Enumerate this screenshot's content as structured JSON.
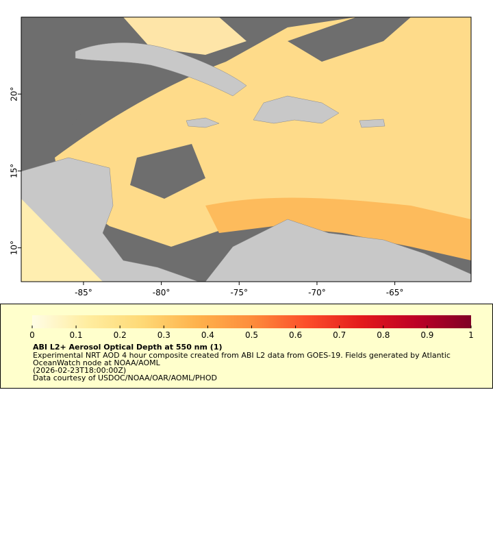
{
  "chart_data": {
    "type": "map",
    "xlim": [
      -89,
      -60.1
    ],
    "ylim": [
      7.8,
      25
    ],
    "xticks": [
      {
        "value": -85,
        "label": "-85°"
      },
      {
        "value": -80,
        "label": "-80°"
      },
      {
        "value": -75,
        "label": "-75°"
      },
      {
        "value": -70,
        "label": "-70°"
      },
      {
        "value": -65,
        "label": "-65°"
      }
    ],
    "yticks": [
      {
        "value": 10,
        "label": "10°"
      },
      {
        "value": 15,
        "label": "15°"
      },
      {
        "value": 20,
        "label": "20°"
      }
    ],
    "colorbar": {
      "lim": [
        0,
        1
      ],
      "ticks": [
        0,
        0.1,
        0.2,
        0.3,
        0.4,
        0.5,
        0.6,
        0.7,
        0.8,
        0.9,
        1
      ],
      "colors": [
        "#fffde6",
        "#ffeda0",
        "#fed976",
        "#feb24c",
        "#fd8d3c",
        "#fc4e2a",
        "#e31a1c",
        "#bd0026",
        "#800026"
      ]
    },
    "title": "ABI L2+ Aerosol Optical Depth at 550 nm (1)",
    "description": [
      "Experimental NRT AOD 4 hour composite created from ABI L2 data from GOES-19. Fields generated by Atlantic",
      "OceanWatch node at NOAA/AOML",
      "(2026-02-23T18:00:00Z)",
      "Data courtesy of USDOC/NOAA/OAR/AOML/PHOD"
    ]
  }
}
